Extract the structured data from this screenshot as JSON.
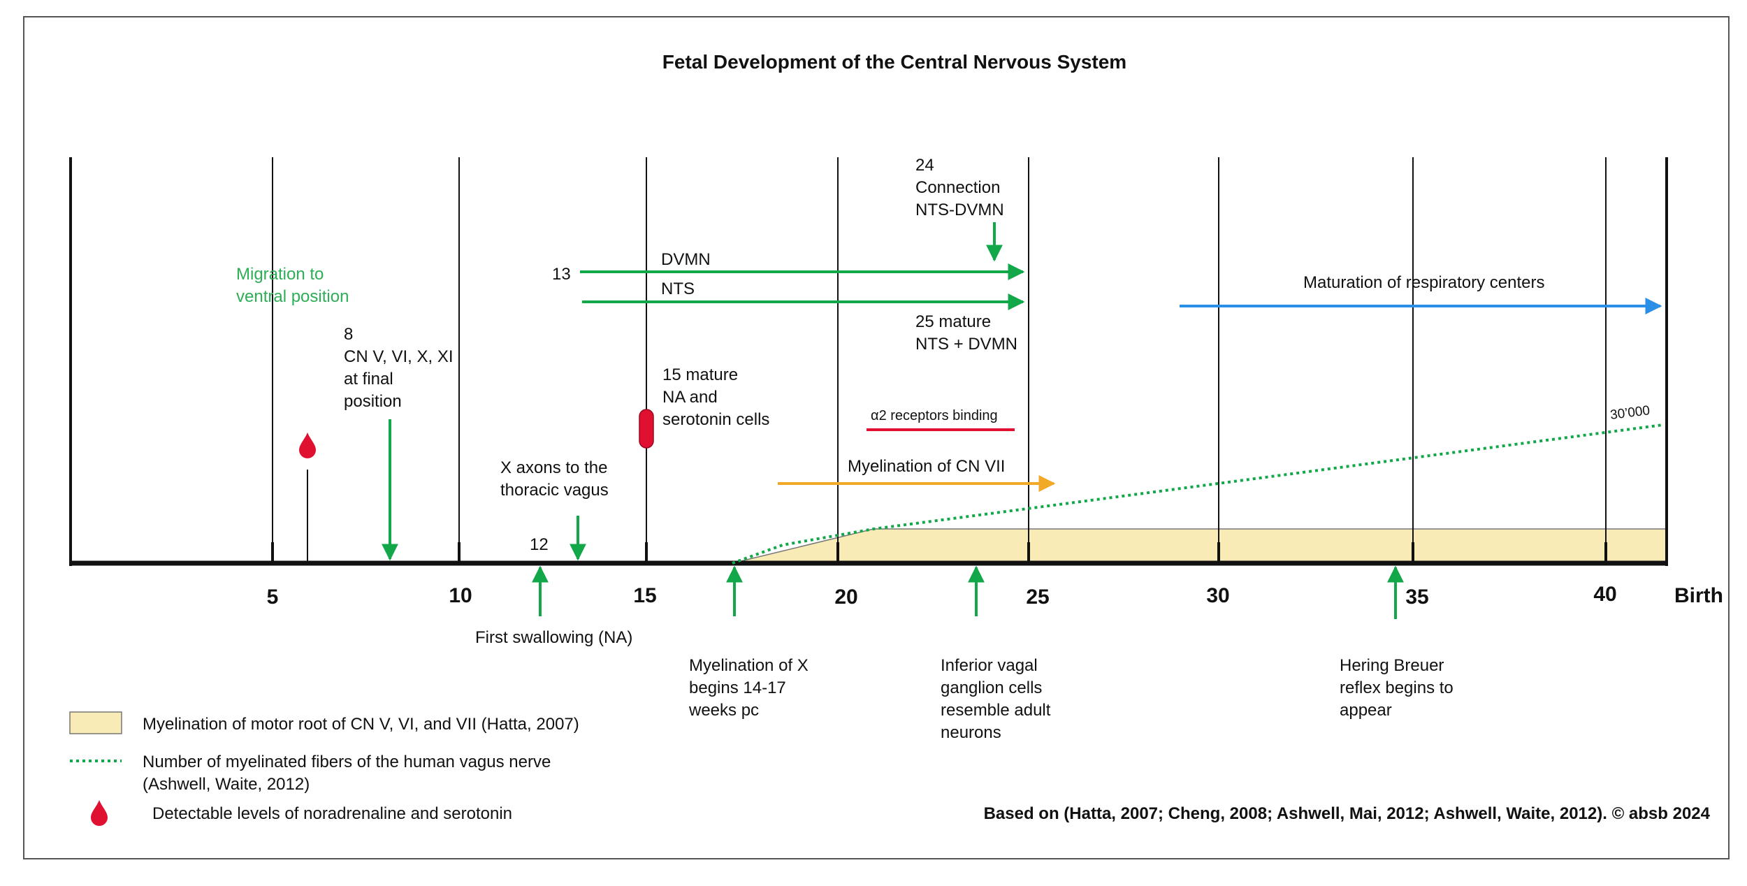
{
  "title": "Fetal Development of the Central Nervous System",
  "axis": {
    "ticks": [
      "5",
      "10",
      "15",
      "20",
      "25",
      "30",
      "35",
      "40"
    ],
    "end_label": "Birth"
  },
  "events": {
    "migration": [
      "Migration to",
      "ventral position"
    ],
    "cn_final": [
      "8",
      "CN V, VI, X, XI",
      "at final",
      "position"
    ],
    "x_axons": [
      "X axons to the",
      "thoracic vagus"
    ],
    "x_axons_week": "12",
    "mature_cells": [
      "15  mature",
      "NA and",
      "serotonin cells"
    ],
    "connection": [
      "24",
      "Connection",
      "NTS-DVMN"
    ],
    "dvmn_start": "13",
    "dvmn": "DVMN",
    "nts": "NTS",
    "mature_nts": [
      "25      mature",
      "NTS + DVMN"
    ],
    "respiratory": "Maturation of  respiratory centers",
    "alpha2": "α2 receptors binding",
    "myelin_cn7": "Myelination of CN VII",
    "fibers_end": "30’000"
  },
  "below_axis": {
    "first_swallowing": "First swallowing (NA)",
    "myelination_x": [
      "Myelination of X",
      "begins 14-17",
      "weeks pc"
    ],
    "inferior_vagal": [
      "Inferior vagal",
      "ganglion cells",
      "resemble adult",
      "neurons"
    ],
    "hering_breuer": [
      "Hering Breuer",
      "reflex begins to",
      "appear"
    ]
  },
  "legend": {
    "motor_root": "Myelination of motor root of CN V, VI, and VII (Hatta, 2007)",
    "vagus_fibers": [
      "Number of myelinated  fibers of the human vagus nerve",
      "(Ashwell, Waite, 2012)"
    ],
    "levels": "Detectable levels of noradrenaline and serotonin"
  },
  "source": "Based on (Hatta, 2007; Cheng, 2008; Ashwell, Mai, 2012; Ashwell, Waite, 2012). © absb 2024",
  "colors": {
    "green": "#12a84a",
    "green_text": "#2eae56",
    "blue": "#2a8fe6",
    "orange": "#f2a928",
    "red": "#e01030",
    "beige": "#f9ebb6"
  }
}
